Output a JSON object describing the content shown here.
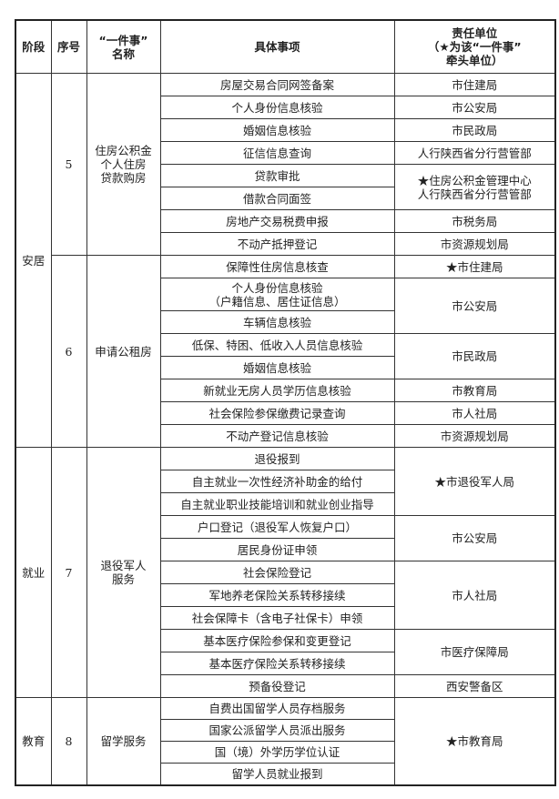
{
  "header": {
    "stage": "阶段",
    "no": "序号",
    "name": "“一件事”\n名称",
    "item": "具体事项",
    "unit": "责任单位\n（★为该“一件事”\n牵头单位）"
  },
  "stages": [
    {
      "label": "安居",
      "groups": [
        {
          "no": "5",
          "name": "住房公积金\n个人住房\n贷款购房",
          "items": [
            "房屋交易合同网签备案",
            "个人身份信息核验",
            "婚姻信息核验",
            "征信信息查询",
            "贷款审批",
            "借款合同面签",
            "房地产交易税费申报",
            "不动产抵押登记"
          ],
          "units": [
            {
              "text": "市住建局",
              "span": 1
            },
            {
              "text": "市公安局",
              "span": 1
            },
            {
              "text": "市民政局",
              "span": 1
            },
            {
              "text": "人行陕西省分行营管部",
              "span": 1
            },
            {
              "text": "★住房公积金管理中心\n人行陕西省分行营管部",
              "span": 2
            },
            {
              "text": "市税务局",
              "span": 1
            },
            {
              "text": "市资源规划局",
              "span": 1
            }
          ]
        },
        {
          "no": "6",
          "name": "申请公租房",
          "items": [
            "保障性住房信息核查",
            "个人身份信息核验\n（户籍信息、居住证信息）",
            "车辆信息核验",
            "低保、特困、低收入人员信息核验",
            "婚姻信息核验",
            "新就业无房人员学历信息核验",
            "社会保险参保缴费记录查询",
            "不动产登记信息核验"
          ],
          "units": [
            {
              "text": "★市住建局",
              "span": 1
            },
            {
              "text": "市公安局",
              "span": 2
            },
            {
              "text": "市民政局",
              "span": 2
            },
            {
              "text": "市教育局",
              "span": 1
            },
            {
              "text": "市人社局",
              "span": 1
            },
            {
              "text": "市资源规划局",
              "span": 1
            }
          ]
        }
      ]
    },
    {
      "label": "就业",
      "groups": [
        {
          "no": "7",
          "name": "退役军人\n服务",
          "items": [
            "退役报到",
            "自主就业一次性经济补助金的给付",
            "自主就业职业技能培训和就业创业指导",
            "户口登记（退役军人恢复户口）",
            "居民身份证申领",
            "社会保险登记",
            "军地养老保险关系转移接续",
            "社会保障卡（含电子社保卡）申领",
            "基本医疗保险参保和变更登记",
            "基本医疗保险关系转移接续",
            "预备役登记"
          ],
          "units": [
            {
              "text": "★市退役军人局",
              "span": 3
            },
            {
              "text": "市公安局",
              "span": 2
            },
            {
              "text": "市人社局",
              "span": 3
            },
            {
              "text": "市医疗保障局",
              "span": 2
            },
            {
              "text": "西安警备区",
              "span": 1
            }
          ]
        }
      ]
    },
    {
      "label": "教育",
      "groups": [
        {
          "no": "8",
          "name": "留学服务",
          "items": [
            "自费出国留学人员存档服务",
            "国家公派留学人员派出服务",
            "国（境）外学历学位认证",
            "留学人员就业报到"
          ],
          "units": [
            {
              "text": "★市教育局",
              "span": 4
            }
          ]
        }
      ]
    }
  ]
}
